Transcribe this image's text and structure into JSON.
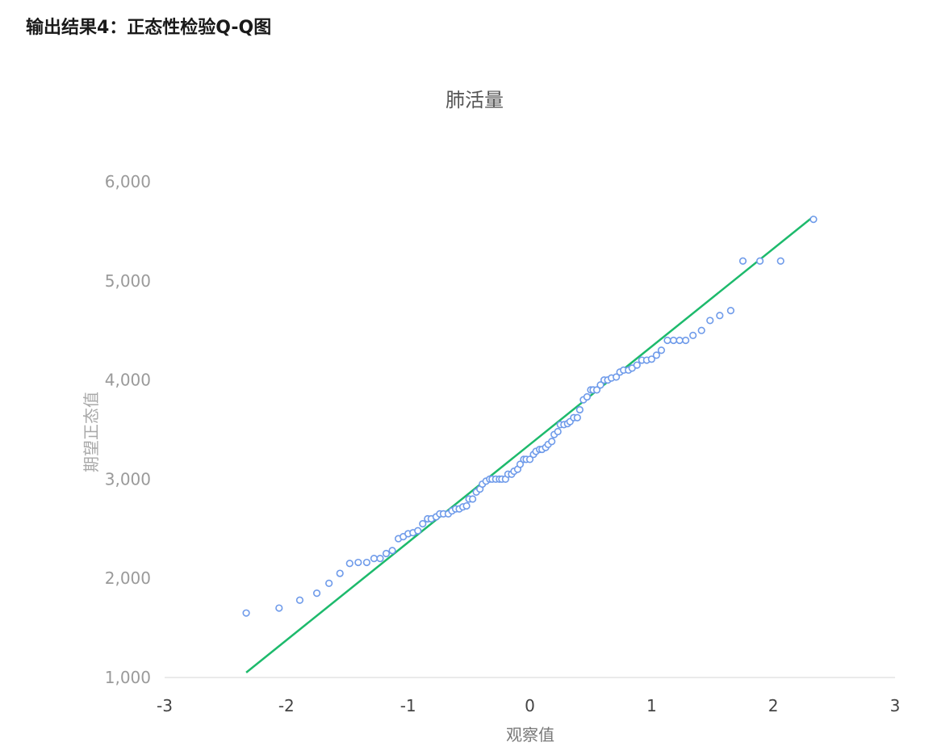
{
  "heading": "输出结果4：正态性检验Q-Q图",
  "colors": {
    "point_stroke": "#6f9bea",
    "fit_line": "#1dba6c",
    "axis_line": "#e4e4e4"
  },
  "chart_data": {
    "type": "scatter",
    "title": "肺活量",
    "xlabel": "观察值",
    "ylabel": "期望正态值",
    "xlim": [
      -3,
      3
    ],
    "ylim": [
      1000,
      6000
    ],
    "xticks": [
      "-3",
      "-2",
      "-1",
      "0",
      "1",
      "2",
      "3"
    ],
    "yticks": [
      "1,000",
      "2,000",
      "3,000",
      "4,000",
      "5,000",
      "6,000"
    ],
    "grid": false,
    "legend": "none",
    "fit_line": {
      "x": [
        -2.33,
        2.33
      ],
      "y": [
        1050,
        5650
      ]
    },
    "points": [
      [
        -2.33,
        1650
      ],
      [
        -2.06,
        1700
      ],
      [
        -1.89,
        1780
      ],
      [
        -1.75,
        1850
      ],
      [
        -1.65,
        1950
      ],
      [
        -1.56,
        2050
      ],
      [
        -1.48,
        2150
      ],
      [
        -1.41,
        2160
      ],
      [
        -1.34,
        2160
      ],
      [
        -1.28,
        2200
      ],
      [
        -1.23,
        2200
      ],
      [
        -1.18,
        2250
      ],
      [
        -1.13,
        2280
      ],
      [
        -1.08,
        2400
      ],
      [
        -1.04,
        2420
      ],
      [
        -1.0,
        2450
      ],
      [
        -0.96,
        2460
      ],
      [
        -0.92,
        2480
      ],
      [
        -0.88,
        2550
      ],
      [
        -0.84,
        2600
      ],
      [
        -0.81,
        2600
      ],
      [
        -0.77,
        2620
      ],
      [
        -0.74,
        2650
      ],
      [
        -0.71,
        2650
      ],
      [
        -0.67,
        2650
      ],
      [
        -0.64,
        2680
      ],
      [
        -0.61,
        2700
      ],
      [
        -0.58,
        2700
      ],
      [
        -0.55,
        2720
      ],
      [
        -0.52,
        2730
      ],
      [
        -0.5,
        2800
      ],
      [
        -0.47,
        2800
      ],
      [
        -0.44,
        2870
      ],
      [
        -0.41,
        2900
      ],
      [
        -0.39,
        2950
      ],
      [
        -0.36,
        2980
      ],
      [
        -0.33,
        3000
      ],
      [
        -0.31,
        3000
      ],
      [
        -0.28,
        3000
      ],
      [
        -0.25,
        3000
      ],
      [
        -0.23,
        3000
      ],
      [
        -0.2,
        3000
      ],
      [
        -0.18,
        3050
      ],
      [
        -0.15,
        3050
      ],
      [
        -0.13,
        3080
      ],
      [
        -0.1,
        3100
      ],
      [
        -0.08,
        3150
      ],
      [
        -0.05,
        3200
      ],
      [
        -0.03,
        3200
      ],
      [
        0.0,
        3200
      ],
      [
        0.03,
        3250
      ],
      [
        0.05,
        3280
      ],
      [
        0.08,
        3300
      ],
      [
        0.1,
        3300
      ],
      [
        0.13,
        3320
      ],
      [
        0.15,
        3350
      ],
      [
        0.18,
        3380
      ],
      [
        0.2,
        3450
      ],
      [
        0.23,
        3480
      ],
      [
        0.25,
        3550
      ],
      [
        0.28,
        3550
      ],
      [
        0.31,
        3560
      ],
      [
        0.33,
        3580
      ],
      [
        0.36,
        3620
      ],
      [
        0.39,
        3620
      ],
      [
        0.41,
        3700
      ],
      [
        0.44,
        3800
      ],
      [
        0.47,
        3830
      ],
      [
        0.5,
        3900
      ],
      [
        0.52,
        3900
      ],
      [
        0.55,
        3900
      ],
      [
        0.58,
        3950
      ],
      [
        0.61,
        4000
      ],
      [
        0.64,
        4000
      ],
      [
        0.67,
        4020
      ],
      [
        0.71,
        4030
      ],
      [
        0.74,
        4080
      ],
      [
        0.77,
        4100
      ],
      [
        0.81,
        4100
      ],
      [
        0.84,
        4120
      ],
      [
        0.88,
        4150
      ],
      [
        0.92,
        4200
      ],
      [
        0.96,
        4200
      ],
      [
        1.0,
        4210
      ],
      [
        1.04,
        4250
      ],
      [
        1.08,
        4300
      ],
      [
        1.13,
        4400
      ],
      [
        1.18,
        4400
      ],
      [
        1.23,
        4400
      ],
      [
        1.28,
        4400
      ],
      [
        1.34,
        4450
      ],
      [
        1.41,
        4500
      ],
      [
        1.48,
        4600
      ],
      [
        1.56,
        4650
      ],
      [
        1.65,
        4700
      ],
      [
        1.75,
        5200
      ],
      [
        1.89,
        5200
      ],
      [
        2.06,
        5200
      ],
      [
        2.33,
        5620
      ]
    ]
  }
}
